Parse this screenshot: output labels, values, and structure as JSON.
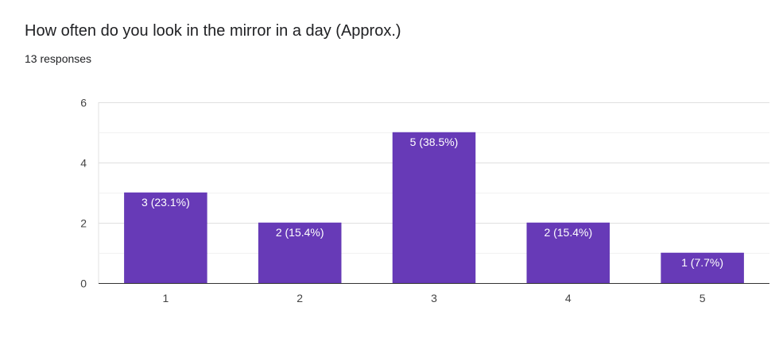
{
  "form": {
    "question": "How often do you look in the mirror in a day (Approx.)",
    "responses_label": "13 responses"
  },
  "chart_data": {
    "type": "bar",
    "categories": [
      "1",
      "2",
      "3",
      "4",
      "5"
    ],
    "values": [
      3,
      2,
      5,
      2,
      1
    ],
    "data_labels": [
      "3 (23.1%)",
      "2 (15.4%)",
      "5 (38.5%)",
      "2 (15.4%)",
      "1 (7.7%)"
    ],
    "ylim": [
      0,
      6
    ],
    "yticks": [
      0,
      2,
      4,
      6
    ],
    "minor_grid_step": 1,
    "grid": true,
    "legend": "none",
    "bar_color": "#673ab7",
    "label_color": "#ffffff"
  }
}
